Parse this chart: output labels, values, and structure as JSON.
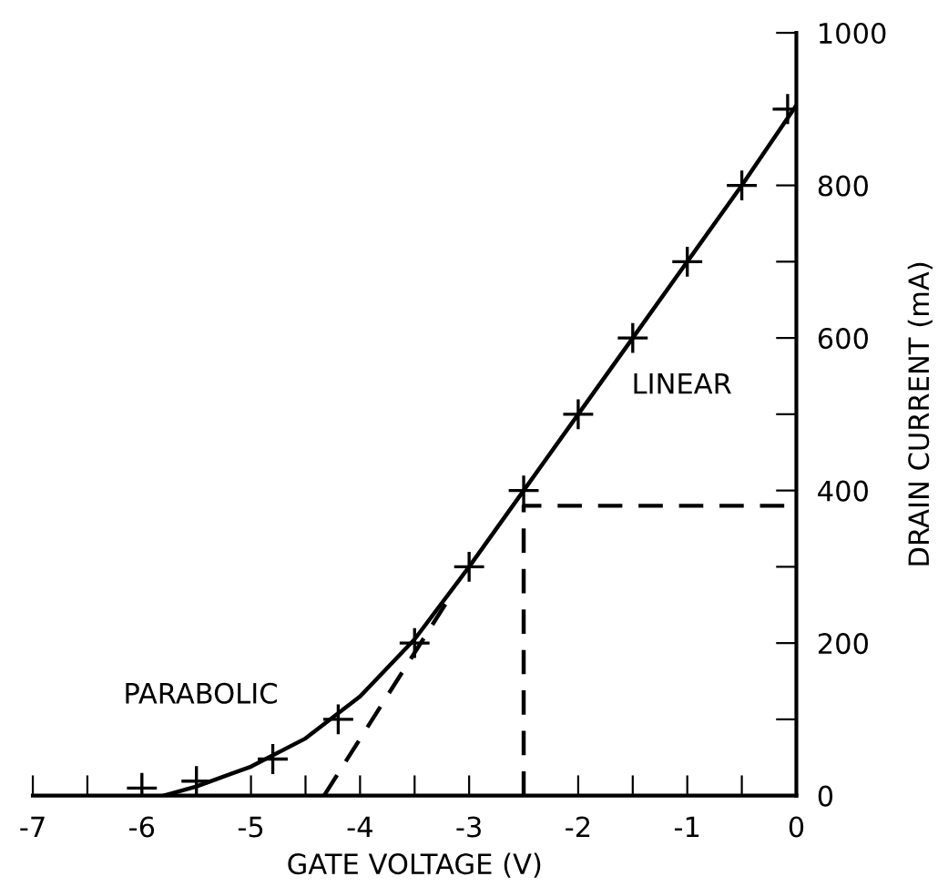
{
  "chart_data": {
    "type": "line",
    "xlabel": "GATE VOLTAGE (V)",
    "ylabel": "DRAIN CURRENT (mA)",
    "xlim": [
      -7,
      0
    ],
    "ylim": [
      0,
      1000
    ],
    "xticks": [
      -7,
      {
        "value": -6.5,
        "label": null
      },
      -6,
      {
        "value": -5.5,
        "label": null
      },
      -5,
      {
        "value": -4.5,
        "label": null
      },
      -4,
      {
        "value": -3.5,
        "label": null
      },
      -3,
      {
        "value": -2.5,
        "label": null
      },
      -2,
      {
        "value": -1.5,
        "label": null
      },
      -1,
      {
        "value": -0.5,
        "label": null
      },
      0
    ],
    "yticks": [
      0,
      {
        "value": 100,
        "label": null
      },
      200,
      {
        "value": 300,
        "label": null
      },
      400,
      {
        "value": 500,
        "label": null
      },
      600,
      {
        "value": 700,
        "label": null
      },
      800,
      {
        "value": 900,
        "label": null
      },
      1000
    ],
    "grid": false,
    "series": [
      {
        "color": "#000000",
        "line_style": "solid",
        "marker": "none",
        "x": [
          -5.8,
          -5.5,
          -5.0,
          -4.5,
          -4.0,
          -3.5,
          -3.0,
          -2.5,
          -2.0,
          -1.5,
          -1.0,
          -0.5,
          0.0
        ],
        "values": [
          0,
          12,
          38,
          75,
          130,
          205,
          300,
          400,
          500,
          600,
          700,
          800,
          905
        ]
      },
      {
        "type": "scatter",
        "color": "#000000",
        "marker": "cross",
        "x": [
          -6.0,
          -5.5,
          -4.8,
          -4.2,
          -3.5,
          -3.0,
          -2.5,
          -2.0,
          -1.5,
          -1.0,
          -0.5,
          -0.08
        ],
        "values": [
          10,
          19,
          48,
          100,
          200,
          300,
          400,
          500,
          600,
          700,
          800,
          900
        ]
      },
      {
        "color": "#000000",
        "line_style": "dashed",
        "marker": "none",
        "x": [
          -4.33,
          -3.2
        ],
        "values": [
          0,
          255
        ]
      },
      {
        "color": "#000000",
        "line_style": "dashed",
        "marker": "none",
        "x": [
          -2.5,
          -2.5,
          0.0
        ],
        "values": [
          0,
          380,
          380
        ]
      }
    ],
    "annotations": [
      "LINEAR",
      "PARABOLIC"
    ]
  }
}
